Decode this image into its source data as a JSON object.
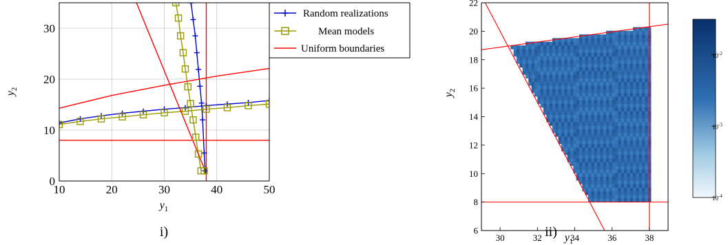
{
  "chart_data": [
    {
      "type": "line",
      "panel_label": "i)",
      "xlabel": "y",
      "xlabel_sub": "1",
      "ylabel": "y",
      "ylabel_sub": "2",
      "xlim": [
        10,
        50
      ],
      "ylim": [
        0,
        35
      ],
      "xticks": [
        "10",
        "20",
        "30",
        "40",
        "50"
      ],
      "yticks": [
        "0",
        "10",
        "20",
        "30"
      ],
      "grid": true,
      "legend_position": "top-right",
      "colors": {
        "random": "#0000cc",
        "mean": "#999900",
        "uniform": "#ff0000"
      },
      "series": [
        {
          "name": "Random realizations",
          "color": "#0000cc",
          "marker": "plus",
          "lines": [
            {
              "x": [
                10,
                14,
                18,
                22,
                26,
                30,
                34,
                38,
                42,
                46,
                50
              ],
              "y": [
                11.4,
                12.2,
                12.8,
                13.3,
                13.7,
                14.1,
                14.4,
                14.8,
                15.1,
                15.4,
                15.8
              ]
            },
            {
              "x": [
                35.1,
                35.5,
                35.9,
                36.2,
                36.5,
                36.8,
                37.1,
                37.3,
                37.6,
                37.8
              ],
              "y": [
                35,
                31.7,
                28.5,
                25.2,
                21.9,
                18.6,
                15.3,
                12.0,
                5.5,
                2.0
              ]
            }
          ]
        },
        {
          "name": "Mean models",
          "color": "#999900",
          "marker": "square",
          "lines": [
            {
              "x": [
                10,
                14,
                18,
                22,
                26,
                30,
                34,
                38,
                42,
                46,
                50
              ],
              "y": [
                11.1,
                11.7,
                12.2,
                12.6,
                13.0,
                13.4,
                13.7,
                14.1,
                14.4,
                14.8,
                15.1
              ]
            },
            {
              "x": [
                32.2,
                32.7,
                33.1,
                33.6,
                34.0,
                34.5,
                35.0,
                35.5,
                36.0,
                36.5,
                37.0,
                37.6
              ],
              "y": [
                35,
                32.0,
                28.5,
                25.2,
                22.0,
                18.5,
                15.2,
                12.0,
                8.6,
                5.3,
                2.0,
                2.0
              ]
            }
          ]
        },
        {
          "name": "Uniform boundaries",
          "color": "#ff0000",
          "marker": "none",
          "lines": [
            {
              "x": [
                10,
                20,
                30,
                40,
                50
              ],
              "y": [
                14.3,
                16.8,
                18.8,
                20.6,
                22.1
              ]
            },
            {
              "x": [
                10,
                50
              ],
              "y": [
                8,
                8
              ]
            },
            {
              "x": [
                38,
                38
              ],
              "y": [
                0,
                35
              ]
            },
            {
              "x": [
                24.7,
                37.8
              ],
              "y": [
                35,
                2
              ]
            }
          ]
        }
      ]
    },
    {
      "type": "heatmap",
      "panel_label": "ii)",
      "xlabel": "y",
      "xlabel_sub": "1",
      "ylabel": "y",
      "ylabel_sub": "2",
      "xlim": [
        29,
        39
      ],
      "ylim": [
        6,
        22
      ],
      "xticks": [
        "30",
        "32",
        "34",
        "36",
        "38"
      ],
      "yticks": [
        "6",
        "8",
        "10",
        "12",
        "14",
        "16",
        "18",
        "20",
        "22"
      ],
      "colorbar_ticks": [
        {
          "base": "10",
          "exp": "-2",
          "value": 0.01
        },
        {
          "base": "10",
          "exp": "-3",
          "value": 0.001
        },
        {
          "base": "10",
          "exp": "-4",
          "value": 0.0001
        }
      ],
      "colormap": [
        "#f2f7fd",
        "#08306b"
      ],
      "region": {
        "vertices": [
          [
            30.5,
            19.0
          ],
          [
            34.8,
            8.0
          ],
          [
            38.0,
            8.0
          ],
          [
            38.0,
            20.3
          ]
        ],
        "color": "#2f6fb2"
      },
      "boundaries": [
        {
          "x": [
            29,
            39
          ],
          "y": [
            18.7,
            20.5
          ],
          "color": "#ff0000"
        },
        {
          "x": [
            29,
            39
          ],
          "y": [
            8,
            8
          ],
          "color": "#ff0000"
        },
        {
          "x": [
            38,
            38
          ],
          "y": [
            6,
            22
          ],
          "color": "#ff0000"
        },
        {
          "x": [
            29.0,
            35.6
          ],
          "y": [
            22.5,
            6.0
          ],
          "color": "#ff0000"
        }
      ]
    }
  ]
}
